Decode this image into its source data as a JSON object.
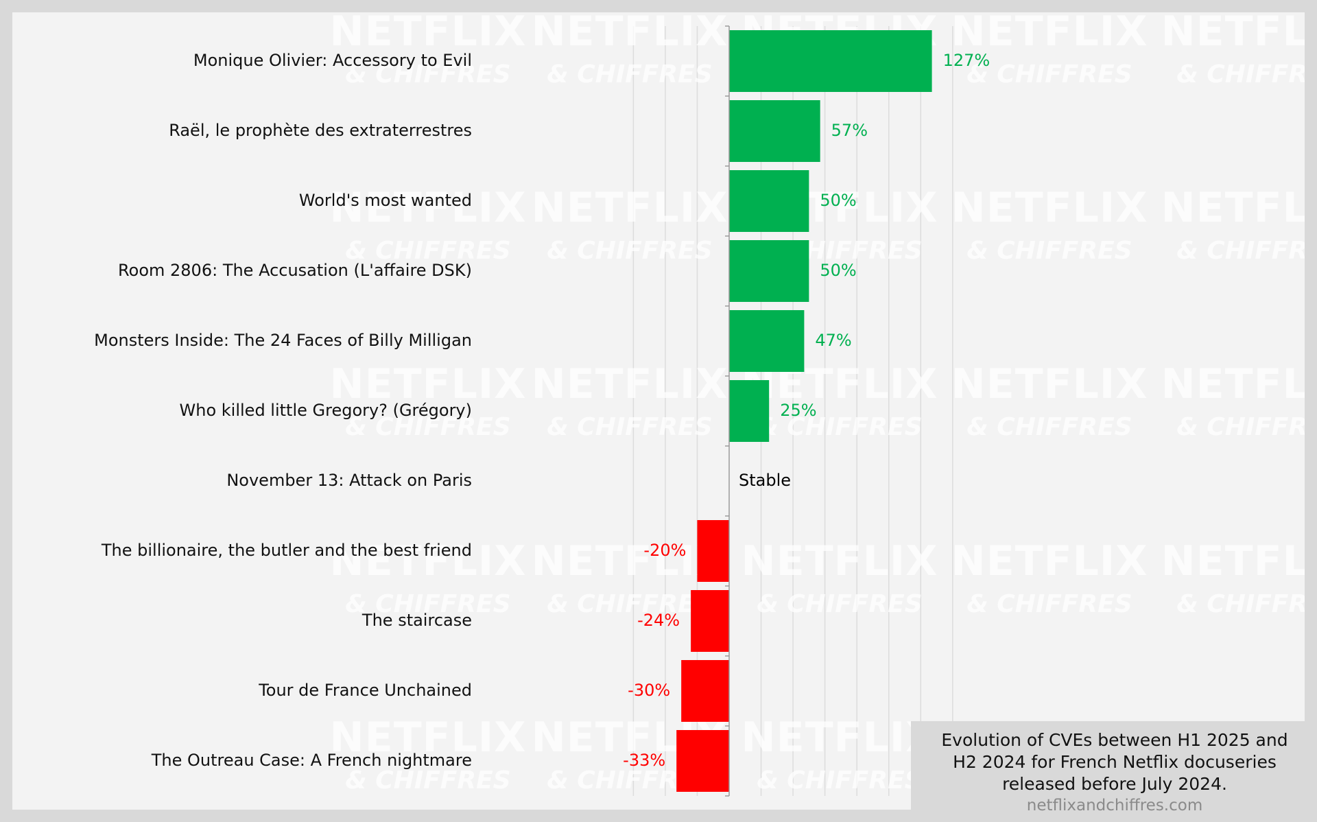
{
  "chart_data": {
    "type": "bar",
    "orientation": "horizontal",
    "categories": [
      "Monique Olivier: Accessory to Evil",
      "Raël, le prophète des extraterrestres",
      "World's most wanted",
      "Room 2806: The Accusation (L'affaire DSK)",
      "Monsters Inside: The 24 Faces of Billy Milligan",
      "Who killed little Gregory? (Grégory)",
      "November 13: Attack on Paris",
      "The billionaire, the butler and the best friend",
      "The staircase",
      "Tour de France Unchained",
      "The Outreau Case: A French nightmare"
    ],
    "values": [
      127,
      57,
      50,
      50,
      47,
      25,
      0,
      -20,
      -24,
      -30,
      -33
    ],
    "value_labels": [
      "127%",
      "57%",
      "50%",
      "50%",
      "47%",
      "25%",
      "Stable",
      "-20%",
      "-24%",
      "-30%",
      "-33%"
    ],
    "xlim": [
      -60,
      140
    ],
    "grid": true,
    "positive_color": "#00b050",
    "negative_color": "#ff0000",
    "neutral_color": "#000000",
    "gridline_color": "#dcdcdc",
    "axis_color": "#999999"
  },
  "watermark": {
    "line1": "NETFLIX",
    "line2": "& CHIFFRES"
  },
  "caption": {
    "text": "Evolution of CVEs between H1 2025 and H2 2024 for French Netflix docuseries released before July 2024.",
    "source": "netflixandchiffres.com"
  }
}
